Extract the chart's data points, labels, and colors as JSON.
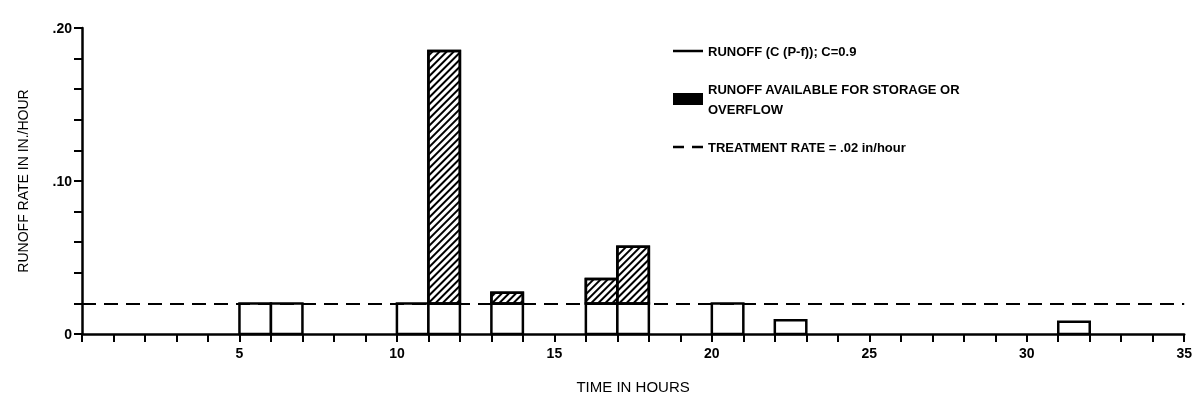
{
  "chart_data": {
    "type": "bar",
    "xlabel": "TIME IN HOURS",
    "ylabel": "RUNOFF RATE IN IN./HOUR",
    "x": [
      5.5,
      6.5,
      10.5,
      11.5,
      13.5,
      16.5,
      17.5,
      20.5,
      22.5,
      31.5
    ],
    "stacked": true,
    "series": [
      {
        "name": "RUNOFF (C (P-f)); C=0.9",
        "color": "#000000",
        "values": [
          0.02,
          0.02,
          0.02,
          0.02,
          0.02,
          0.02,
          0.02,
          0.02,
          0.009,
          0.008
        ]
      },
      {
        "name": "RUNOFF AVAILABLE FOR STORAGE OR OVERFLOW",
        "color": "#000000",
        "values": [
          null,
          null,
          null,
          0.165,
          0.007,
          0.016,
          0.037,
          null,
          null,
          null
        ]
      }
    ],
    "ref_lines": [
      {
        "axis": "y",
        "value": 0.02,
        "label": "TREATMENT RATE = .02 in/hour",
        "line_style": "dashed",
        "color": "#000000"
      }
    ],
    "xlim": [
      0,
      35
    ],
    "xticks": [
      {
        "value": 0,
        "label": null
      },
      {
        "value": 1,
        "label": null
      },
      {
        "value": 2,
        "label": null
      },
      {
        "value": 3,
        "label": null
      },
      {
        "value": 4,
        "label": null
      },
      5,
      {
        "value": 6,
        "label": null
      },
      {
        "value": 7,
        "label": null
      },
      {
        "value": 8,
        "label": null
      },
      {
        "value": 9,
        "label": null
      },
      10,
      {
        "value": 11,
        "label": null
      },
      {
        "value": 12,
        "label": null
      },
      {
        "value": 13,
        "label": null
      },
      {
        "value": 14,
        "label": null
      },
      15,
      {
        "value": 16,
        "label": null
      },
      {
        "value": 17,
        "label": null
      },
      {
        "value": 18,
        "label": null
      },
      {
        "value": 19,
        "label": null
      },
      20,
      {
        "value": 21,
        "label": null
      },
      {
        "value": 22,
        "label": null
      },
      {
        "value": 23,
        "label": null
      },
      {
        "value": 24,
        "label": null
      },
      25,
      {
        "value": 26,
        "label": null
      },
      {
        "value": 27,
        "label": null
      },
      {
        "value": 28,
        "label": null
      },
      {
        "value": 29,
        "label": null
      },
      30,
      {
        "value": 31,
        "label": null
      },
      {
        "value": 32,
        "label": null
      },
      {
        "value": 33,
        "label": null
      },
      {
        "value": 34,
        "label": null
      },
      35
    ],
    "ylim": [
      0,
      0.2
    ],
    "yticks": [
      {
        "value": 0,
        "label": "0"
      },
      {
        "value": 0.02,
        "label": null
      },
      {
        "value": 0.04,
        "label": null
      },
      {
        "value": 0.06,
        "label": null
      },
      {
        "value": 0.08,
        "label": null
      },
      {
        "value": 0.1,
        "label": ".10"
      },
      {
        "value": 0.12,
        "label": null
      },
      {
        "value": 0.14,
        "label": null
      },
      {
        "value": 0.16,
        "label": null
      },
      {
        "value": 0.18,
        "label": null
      },
      {
        "value": 0.2,
        "label": ".20"
      }
    ],
    "grid": false,
    "legend": "top right",
    "line_style": "solid"
  }
}
